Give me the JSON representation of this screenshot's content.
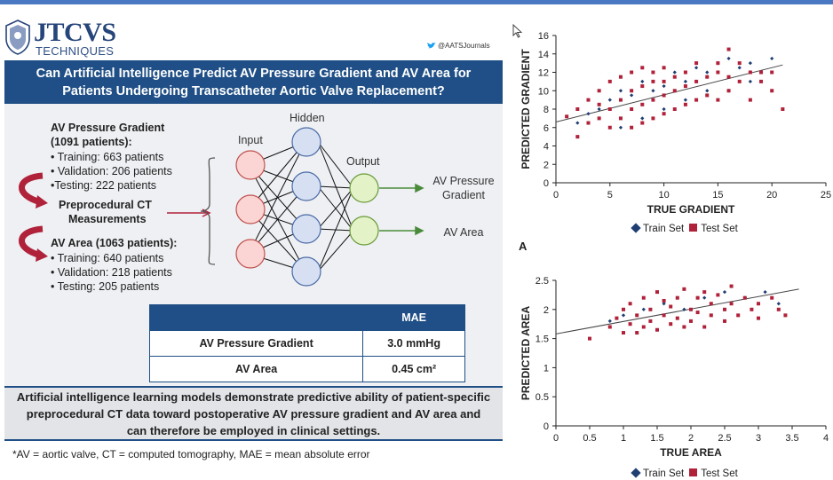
{
  "header": {
    "brand": "JTCVS",
    "brand_sub": "TECHNIQUES",
    "twitter": "@AATSJournals"
  },
  "title": {
    "line1": "Can Artificial Intelligence Predict AV Pressure Gradient and AV Area for",
    "line2": "Patients Undergoing Transcatheter Aortic Valve Replacement?"
  },
  "cohorts": {
    "gradient_title1": "AV Pressure Gradient",
    "gradient_title2": "(1091 patients):",
    "gradient_items": [
      "• Training: 663 patients",
      "• Validation: 206 patients",
      "•Testing: 222 patients"
    ],
    "ct_line1": "Preprocedural CT",
    "ct_line2": "Measurements",
    "area_title": "AV Area (1063 patients):",
    "area_items": [
      "• Training: 640 patients",
      "• Validation: 218 patients",
      "• Testing: 205 patients"
    ]
  },
  "network": {
    "input": "Input",
    "hidden": "Hidden",
    "output": "Output",
    "out1_line1": "AV Pressure",
    "out1_line2": "Gradient",
    "out2": "AV Area"
  },
  "mae_table": {
    "header": "MAE",
    "row1_label": "AV Pressure Gradient",
    "row1_value": "3.0 mmHg",
    "row2_label": "AV Area",
    "row2_value": "0.45 cm²"
  },
  "conclusion": {
    "line1": "Artificial intelligence learning models demonstrate predictive ability of patient-specific",
    "line2": "preprocedural CT data toward postoperative AV pressure gradient and AV area and",
    "line3": "can therefore be employed in clinical settings."
  },
  "footnote": "*AV = aortic valve, CT = computed tomography, MAE = mean absolute error",
  "panel_letter": "A",
  "colors": {
    "navy": "#1f4f86",
    "train": "#1f3f73",
    "test": "#b0213a"
  },
  "chart_data": [
    {
      "type": "scatter",
      "xlabel": "TRUE GRADIENT",
      "ylabel": "PREDICTED GRADIENT",
      "xlim": [
        0,
        25
      ],
      "ylim": [
        0,
        16
      ],
      "xticks": [
        "0",
        "5",
        "10",
        "15",
        "20",
        "25"
      ],
      "yticks": [
        "0",
        "2",
        "4",
        "6",
        "8",
        "10",
        "12",
        "14",
        "16"
      ],
      "legend": [
        "Train Set",
        "Test Set"
      ],
      "legend_position": "bottom",
      "trendline": {
        "x": [
          0,
          21
        ],
        "y": [
          6.6,
          12.8
        ]
      },
      "series": [
        {
          "name": "Train Set",
          "points": [
            [
              2,
              6.5
            ],
            [
              3,
              7.5
            ],
            [
              4,
              8
            ],
            [
              5,
              9
            ],
            [
              6,
              10
            ],
            [
              7,
              9.5
            ],
            [
              8,
              11
            ],
            [
              9,
              10
            ],
            [
              10,
              10.5
            ],
            [
              11,
              12
            ],
            [
              12,
              11
            ],
            [
              13,
              12.5
            ],
            [
              14,
              12
            ],
            [
              15,
              13
            ],
            [
              16,
              13.5
            ],
            [
              17,
              12.5
            ],
            [
              18,
              13
            ],
            [
              19,
              12
            ],
            [
              20,
              13.5
            ],
            [
              6,
              6
            ],
            [
              8,
              7
            ],
            [
              10,
              8
            ],
            [
              12,
              9
            ],
            [
              14,
              10
            ],
            [
              16,
              10
            ],
            [
              18,
              11
            ]
          ]
        },
        {
          "name": "Test Set",
          "points": [
            [
              1,
              7.2
            ],
            [
              2,
              5
            ],
            [
              2,
              8
            ],
            [
              3,
              9
            ],
            [
              3,
              6.5
            ],
            [
              4,
              7
            ],
            [
              4,
              10
            ],
            [
              4,
              8.5
            ],
            [
              5,
              6
            ],
            [
              5,
              8
            ],
            [
              5,
              11
            ],
            [
              6,
              7
            ],
            [
              6,
              9
            ],
            [
              6,
              11.5
            ],
            [
              7,
              6
            ],
            [
              7,
              8
            ],
            [
              7,
              10
            ],
            [
              7,
              12
            ],
            [
              8,
              6.5
            ],
            [
              8,
              8.5
            ],
            [
              8,
              10.5
            ],
            [
              8,
              12.5
            ],
            [
              9,
              7
            ],
            [
              9,
              9
            ],
            [
              9,
              11
            ],
            [
              9,
              12
            ],
            [
              10,
              7.5
            ],
            [
              10,
              9.5
            ],
            [
              10,
              11
            ],
            [
              10,
              12.5
            ],
            [
              11,
              8
            ],
            [
              11,
              10
            ],
            [
              11,
              11.5
            ],
            [
              12,
              8.5
            ],
            [
              12,
              10.5
            ],
            [
              12,
              12
            ],
            [
              13,
              9
            ],
            [
              13,
              11
            ],
            [
              13,
              13
            ],
            [
              14,
              9.5
            ],
            [
              14,
              11.5
            ],
            [
              15,
              9
            ],
            [
              15,
              12
            ],
            [
              15,
              13
            ],
            [
              16,
              10
            ],
            [
              16,
              14.5
            ],
            [
              16,
              11.5
            ],
            [
              17,
              11
            ],
            [
              17,
              13
            ],
            [
              18,
              9
            ],
            [
              18,
              12
            ],
            [
              19,
              12
            ],
            [
              19,
              11
            ],
            [
              20,
              12
            ],
            [
              20,
              10
            ],
            [
              21,
              8
            ]
          ]
        }
      ]
    },
    {
      "type": "scatter",
      "xlabel": "TRUE AREA",
      "ylabel": "PREDICTED AREA",
      "xlim": [
        0,
        4
      ],
      "ylim": [
        0,
        2.5
      ],
      "xticks": [
        "0",
        "0.5",
        "1",
        "1.5",
        "2",
        "2.5",
        "3",
        "3.5",
        "4"
      ],
      "yticks": [
        "0",
        "0.5",
        "1",
        "1.5",
        "2",
        "2.5"
      ],
      "legend": [
        "Train Set",
        "Test Set"
      ],
      "legend_position": "bottom",
      "trendline": {
        "x": [
          0,
          3.6
        ],
        "y": [
          1.58,
          2.35
        ]
      },
      "series": [
        {
          "name": "Train Set",
          "points": [
            [
              0.8,
              1.8
            ],
            [
              1.0,
              1.9
            ],
            [
              1.3,
              2.0
            ],
            [
              1.6,
              2.1
            ],
            [
              1.9,
              2.0
            ],
            [
              2.2,
              2.2
            ],
            [
              2.5,
              2.3
            ],
            [
              2.8,
              2.2
            ],
            [
              3.1,
              2.3
            ],
            [
              3.3,
              2.1
            ]
          ]
        },
        {
          "name": "Test Set",
          "points": [
            [
              0.5,
              1.5
            ],
            [
              0.8,
              1.7
            ],
            [
              0.9,
              1.85
            ],
            [
              1.0,
              1.6
            ],
            [
              1.0,
              2.0
            ],
            [
              1.1,
              1.75
            ],
            [
              1.1,
              2.1
            ],
            [
              1.2,
              1.9
            ],
            [
              1.2,
              1.6
            ],
            [
              1.3,
              2.2
            ],
            [
              1.3,
              1.7
            ],
            [
              1.4,
              2.0
            ],
            [
              1.4,
              1.8
            ],
            [
              1.5,
              2.3
            ],
            [
              1.5,
              1.65
            ],
            [
              1.6,
              1.9
            ],
            [
              1.6,
              2.15
            ],
            [
              1.7,
              1.75
            ],
            [
              1.7,
              2.05
            ],
            [
              1.8,
              2.2
            ],
            [
              1.8,
              1.85
            ],
            [
              1.9,
              1.7
            ],
            [
              1.9,
              2.35
            ],
            [
              2.0,
              2.0
            ],
            [
              2.0,
              1.8
            ],
            [
              2.1,
              2.2
            ],
            [
              2.1,
              1.95
            ],
            [
              2.2,
              2.3
            ],
            [
              2.2,
              1.7
            ],
            [
              2.3,
              2.1
            ],
            [
              2.3,
              1.9
            ],
            [
              2.4,
              2.25
            ],
            [
              2.5,
              2.0
            ],
            [
              2.5,
              1.8
            ],
            [
              2.6,
              2.4
            ],
            [
              2.6,
              2.1
            ],
            [
              2.7,
              1.9
            ],
            [
              2.8,
              2.2
            ],
            [
              2.9,
              2.0
            ],
            [
              3.0,
              2.1
            ],
            [
              3.0,
              1.85
            ],
            [
              3.2,
              2.2
            ],
            [
              3.3,
              2.0
            ],
            [
              3.4,
              1.9
            ]
          ]
        }
      ]
    }
  ]
}
